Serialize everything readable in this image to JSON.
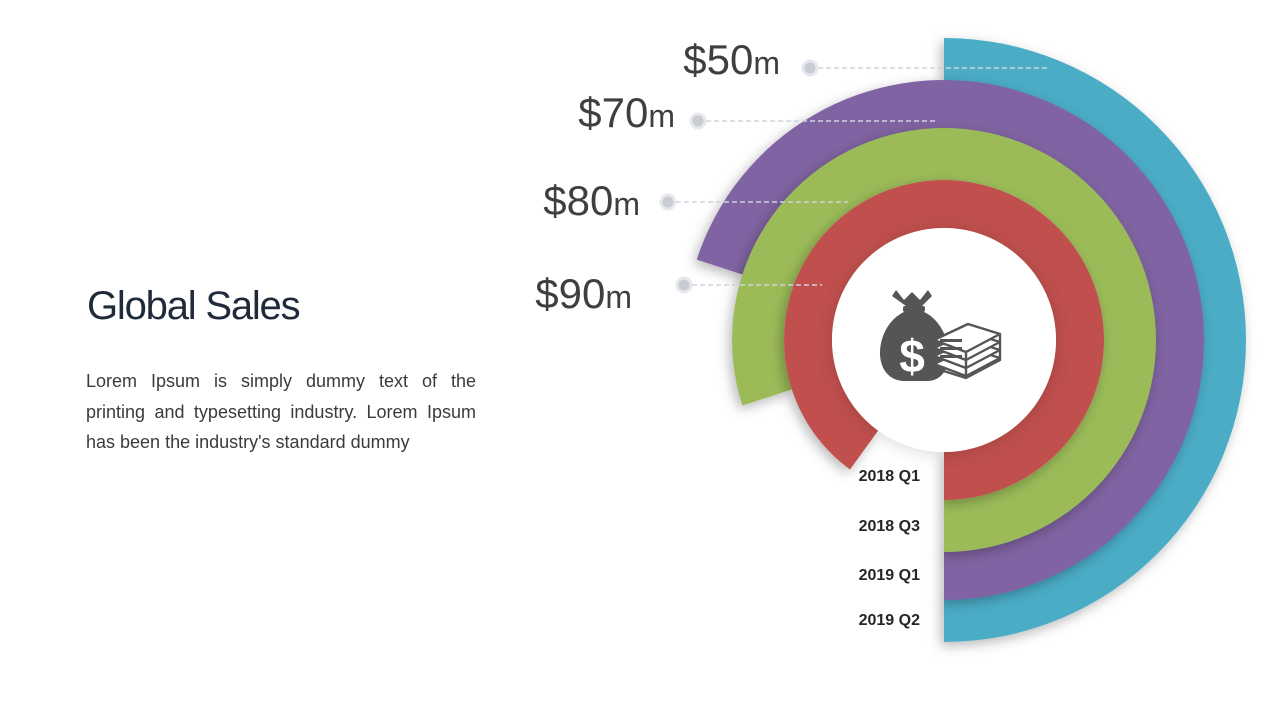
{
  "slide": {
    "title": "Global Sales",
    "body": "Lorem Ipsum is simply dummy  text of the printing and typesetting industry. Lorem Ipsum has been the industry's standard dummy"
  },
  "chart_data": {
    "type": "radial-bar",
    "title": "",
    "categories": [
      "2018 Q1",
      "2018 Q3",
      "2019 Q1",
      "2019 Q2"
    ],
    "values": [
      90,
      80,
      70,
      50
    ],
    "value_labels": [
      {
        "amount": "$90",
        "unit": "m"
      },
      {
        "amount": "$80",
        "unit": "m"
      },
      {
        "amount": "$70",
        "unit": "m"
      },
      {
        "amount": "$50",
        "unit": "m"
      }
    ],
    "colors": [
      "#c0504d",
      "#9bbb59",
      "#8064a2",
      "#4bacc6"
    ],
    "center_icon": "money-bag-and-cash-stack-icon"
  }
}
